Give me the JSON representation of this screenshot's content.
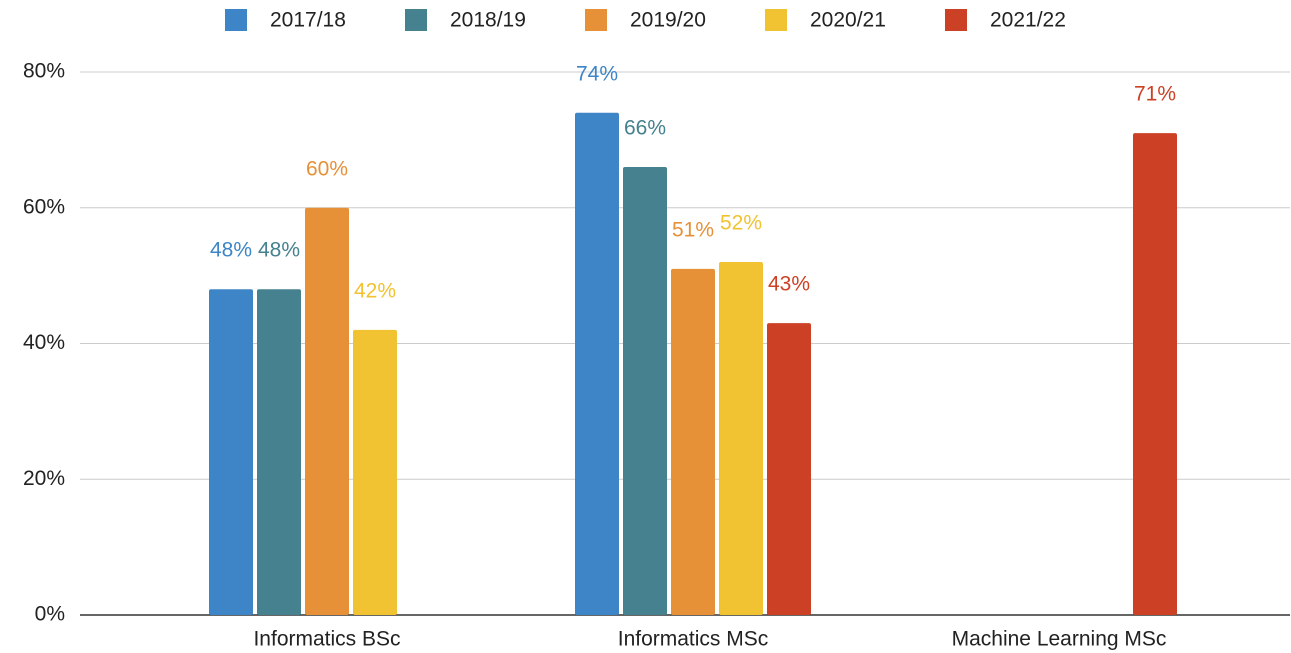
{
  "chart_data": {
    "type": "bar",
    "categories": [
      "Informatics BSc",
      "Informatics MSc",
      "Machine Learning MSc"
    ],
    "series": [
      {
        "name": "2017/18",
        "color": "#3d85c6",
        "values": [
          48,
          74,
          null
        ],
        "value_labels": [
          "48%",
          "74%",
          null
        ]
      },
      {
        "name": "2018/19",
        "color": "#45818e",
        "values": [
          48,
          66,
          null
        ],
        "value_labels": [
          "48%",
          "66%",
          null
        ]
      },
      {
        "name": "2019/20",
        "color": "#e69138",
        "values": [
          60,
          51,
          null
        ],
        "value_labels": [
          "60%",
          "51%",
          null
        ]
      },
      {
        "name": "2020/21",
        "color": "#f1c232",
        "values": [
          42,
          52,
          null
        ],
        "value_labels": [
          "42%",
          "52%",
          null
        ]
      },
      {
        "name": "2021/22",
        "color": "#cc4125",
        "values": [
          null,
          43,
          71
        ],
        "value_labels": [
          null,
          "43%",
          "71%"
        ]
      }
    ],
    "ylim": [
      0,
      80
    ],
    "yticks": [
      {
        "value": 0,
        "label": "0%"
      },
      {
        "value": 20,
        "label": "20%"
      },
      {
        "value": 40,
        "label": "40%"
      },
      {
        "value": 60,
        "label": "60%"
      },
      {
        "value": 80,
        "label": "80%"
      }
    ],
    "grid": true,
    "legend": "top"
  }
}
